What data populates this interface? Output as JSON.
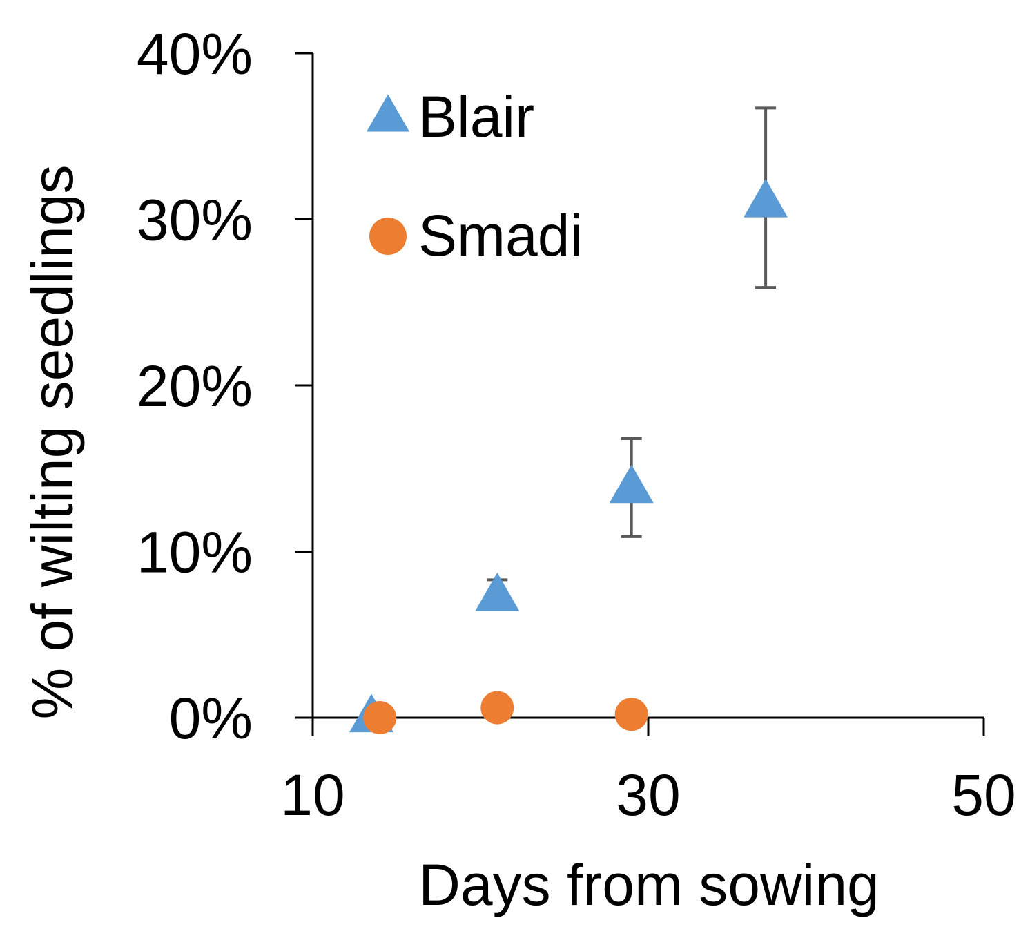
{
  "chart_data": {
    "type": "scatter",
    "title": "",
    "xlabel": "Days from sowing",
    "ylabel": "% of wilting seedlings",
    "xlim": [
      10,
      50
    ],
    "ylim": [
      0,
      0.4
    ],
    "xticks": [
      10,
      30,
      50
    ],
    "xtick_labels": [
      "10",
      "30",
      "50"
    ],
    "yticks": [
      0,
      0.1,
      0.2,
      0.3,
      0.4
    ],
    "ytick_labels": [
      "0%",
      "10%",
      "20%",
      "30%",
      "40%"
    ],
    "grid": false,
    "legend_position": "top-left",
    "series": [
      {
        "name": "Blair",
        "marker": "triangle",
        "color": "#5B9BD5",
        "points": [
          {
            "x": 13.5,
            "y": 0.0,
            "err_low": null,
            "err_high": null
          },
          {
            "x": 21.0,
            "y": 0.073,
            "err_low": 0.069,
            "err_high": 0.083
          },
          {
            "x": 29.0,
            "y": 0.138,
            "err_low": 0.109,
            "err_high": 0.168
          },
          {
            "x": 37.0,
            "y": 0.31,
            "err_low": 0.259,
            "err_high": 0.367
          }
        ]
      },
      {
        "name": "Smadi",
        "marker": "circle",
        "color": "#ED7D31",
        "points": [
          {
            "x": 14.0,
            "y": 0.0
          },
          {
            "x": 21.0,
            "y": 0.006
          },
          {
            "x": 29.0,
            "y": 0.002
          }
        ]
      }
    ]
  }
}
